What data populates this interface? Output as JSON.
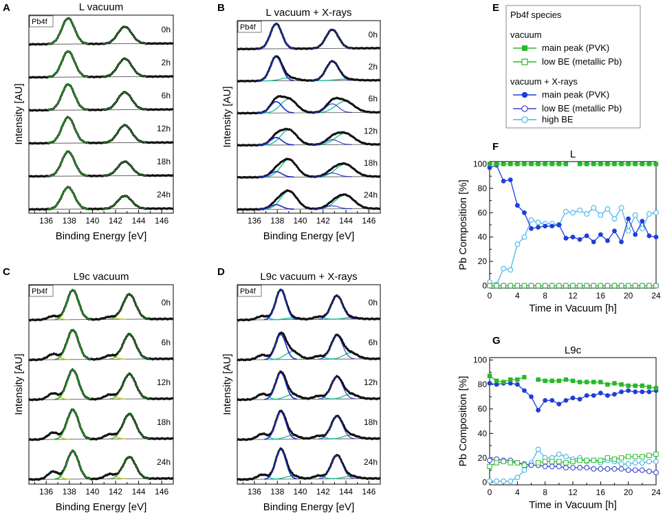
{
  "colors": {
    "data": "#111111",
    "fit_green": "#22a01f",
    "fit_blue": "#1c2fc6",
    "fit_teal": "#1ec09a",
    "fit_yellow": "#c7c21d",
    "vac_main": "#27b82a",
    "vac_lowbe": "#27b82a",
    "x_main": "#1f3dd8",
    "x_lowbe": "#3a44d0",
    "x_highbe": "#45b6e8"
  },
  "chart_data": [
    {
      "panel": "A",
      "type": "line",
      "title": "L vacuum",
      "xlabel": "Binding Energy [eV]",
      "ylabel": "Intensity [AU]",
      "xlim": [
        134.5,
        147
      ],
      "xticks": [
        "136",
        "138",
        "140",
        "142",
        "144",
        "146"
      ],
      "species_tag": "Pb4f",
      "traces": [
        "0h",
        "2h",
        "6h",
        "12h",
        "18h",
        "24h"
      ],
      "peaks": [
        {
          "center": 137.9,
          "width": 0.55
        },
        {
          "center": 142.8,
          "width": 0.6
        }
      ]
    },
    {
      "panel": "B",
      "type": "line",
      "title": "L vacuum + X-rays",
      "xlabel": "Binding Energy [eV]",
      "ylabel": "Intensity [AU]",
      "xlim": [
        134.5,
        147
      ],
      "xticks": [
        "136",
        "138",
        "140",
        "142",
        "144",
        "146"
      ],
      "species_tag": "Pb4f",
      "traces": [
        "0h",
        "2h",
        "6h",
        "12h",
        "18h",
        "24h"
      ],
      "peaks": [
        {
          "center": 137.9,
          "width": 0.5
        },
        {
          "center": 142.8,
          "width": 0.55
        },
        {
          "center": 139.0,
          "width": 0.7
        },
        {
          "center": 143.9,
          "width": 0.8
        }
      ]
    },
    {
      "panel": "C",
      "type": "line",
      "title": "L9c vacuum",
      "xlabel": "Binding Energy [eV]",
      "ylabel": "Intensity [AU]",
      "xlim": [
        134.5,
        147
      ],
      "xticks": [
        "136",
        "138",
        "140",
        "142",
        "144",
        "146"
      ],
      "species_tag": "Pb4f",
      "traces": [
        "0h",
        "6h",
        "12h",
        "18h",
        "24h"
      ],
      "peaks": [
        {
          "center": 138.3,
          "width": 0.5
        },
        {
          "center": 143.2,
          "width": 0.55
        },
        {
          "center": 136.6,
          "width": 0.45
        },
        {
          "center": 141.5,
          "width": 0.45
        }
      ]
    },
    {
      "panel": "D",
      "type": "line",
      "title": "L9c vacuum + X-rays",
      "xlabel": "Binding Energy [eV]",
      "ylabel": "Intensity [AU]",
      "xlim": [
        134.5,
        147
      ],
      "xticks": [
        "136",
        "138",
        "140",
        "142",
        "144",
        "146"
      ],
      "species_tag": "Pb4f",
      "traces": [
        "0h",
        "6h",
        "12h",
        "18h",
        "24h"
      ],
      "peaks": [
        {
          "center": 138.3,
          "width": 0.45
        },
        {
          "center": 143.2,
          "width": 0.5
        },
        {
          "center": 136.7,
          "width": 0.45
        },
        {
          "center": 139.3,
          "width": 0.6
        },
        {
          "center": 141.6,
          "width": 0.45
        },
        {
          "center": 144.4,
          "width": 0.6
        }
      ]
    },
    {
      "panel": "F",
      "type": "line",
      "title": "L",
      "xlabel": "Time in Vacuum [h]",
      "ylabel": "Pb Composition [%]",
      "xlim": [
        0,
        24
      ],
      "ylim": [
        -2,
        102
      ],
      "xticks": [
        0,
        4,
        8,
        12,
        16,
        20,
        24
      ],
      "yticks": [
        0,
        20,
        40,
        60,
        80,
        100
      ],
      "series": [
        {
          "name": "vacuum main peak (PVK)",
          "style": "vac_main",
          "x": [
            0,
            1,
            2,
            3,
            4,
            5,
            6,
            7,
            8,
            9,
            10,
            11,
            13,
            14,
            15,
            16,
            17,
            18,
            19,
            20,
            21,
            22,
            23,
            24
          ],
          "values": [
            100,
            100,
            100,
            100,
            100,
            100,
            100,
            100,
            100,
            100,
            100,
            100,
            100,
            100,
            100,
            100,
            100,
            100,
            100,
            100,
            100,
            100,
            100,
            100
          ]
        },
        {
          "name": "vacuum low BE (metallic Pb)",
          "style": "vac_lowbe",
          "x": [
            0,
            1,
            2,
            3,
            4,
            5,
            6,
            7,
            8,
            9,
            10,
            11,
            12,
            13,
            14,
            15,
            16,
            17,
            18,
            19,
            20,
            21,
            22,
            23,
            24
          ],
          "values": [
            0,
            0,
            0,
            0,
            0,
            0,
            0,
            0,
            0,
            0,
            0,
            0,
            0,
            0,
            0,
            0,
            0,
            0,
            0,
            0,
            0,
            0,
            0,
            0,
            0
          ]
        },
        {
          "name": "vacuum + X-rays main peak (PVK)",
          "style": "x_main",
          "x": [
            0,
            1,
            2,
            3,
            4,
            5,
            6,
            7,
            8,
            9,
            10,
            11,
            12,
            13,
            14,
            15,
            16,
            17,
            18,
            19,
            20,
            21,
            22,
            23,
            24
          ],
          "values": [
            97,
            99,
            86,
            87,
            66,
            60,
            47,
            48,
            49,
            49,
            50,
            39,
            40,
            38,
            41,
            36,
            42,
            37,
            45,
            36,
            55,
            42,
            53,
            41,
            40
          ]
        },
        {
          "name": "vacuum + X-rays low BE (metallic Pb)",
          "style": "x_lowbe",
          "x": [
            0,
            1,
            2,
            3,
            4,
            5,
            6,
            7,
            8,
            9,
            10,
            11,
            12,
            13,
            14,
            15,
            16,
            17,
            18,
            19,
            20,
            21,
            22,
            23,
            24
          ],
          "values": [
            0,
            0,
            0,
            0,
            0,
            0,
            0,
            0,
            0,
            0,
            0,
            0,
            0,
            0,
            0,
            0,
            0,
            0,
            0,
            0,
            0,
            0,
            0,
            0,
            0
          ]
        },
        {
          "name": "vacuum + X-rays high BE",
          "style": "x_highbe",
          "x": [
            0,
            1,
            2,
            3,
            4,
            5,
            6,
            7,
            8,
            9,
            10,
            11,
            12,
            13,
            14,
            15,
            16,
            17,
            18,
            19,
            20,
            21,
            22,
            23,
            24
          ],
          "values": [
            3,
            1,
            14,
            13,
            34,
            40,
            54,
            52,
            51,
            51,
            50,
            61,
            60,
            62,
            59,
            64,
            58,
            63,
            55,
            64,
            45,
            58,
            47,
            59,
            60
          ]
        }
      ]
    },
    {
      "panel": "G",
      "type": "line",
      "title": "L9c",
      "xlabel": "Time in Vacuum [h]",
      "ylabel": "Pb Composition [%]",
      "xlim": [
        0,
        24
      ],
      "ylim": [
        -2,
        102
      ],
      "xticks": [
        0,
        4,
        8,
        12,
        16,
        20,
        24
      ],
      "yticks": [
        0,
        20,
        40,
        60,
        80,
        100
      ],
      "series": [
        {
          "name": "vacuum main peak (PVK)",
          "style": "vac_main",
          "x": [
            0,
            1,
            2,
            3,
            4,
            5,
            7,
            8,
            9,
            10,
            11,
            12,
            13,
            14,
            15,
            16,
            17,
            18,
            19,
            20,
            21,
            22,
            23,
            24
          ],
          "values": [
            87,
            83,
            82,
            84,
            84,
            86,
            84,
            83,
            83,
            83,
            84,
            83,
            82,
            82,
            82,
            82,
            80,
            81,
            80,
            79,
            79,
            79,
            78,
            77
          ]
        },
        {
          "name": "vacuum low BE (metallic Pb)",
          "style": "vac_lowbe",
          "x": [
            0,
            1,
            2,
            3,
            4,
            5,
            7,
            8,
            9,
            10,
            11,
            12,
            13,
            14,
            15,
            16,
            17,
            18,
            19,
            20,
            21,
            22,
            23,
            24
          ],
          "values": [
            13,
            16,
            17,
            16,
            16,
            14,
            16,
            17,
            17,
            17,
            16,
            17,
            18,
            18,
            18,
            18,
            20,
            19,
            20,
            21,
            21,
            21,
            22,
            23
          ]
        },
        {
          "name": "vacuum + X-rays main peak (PVK)",
          "style": "x_main",
          "x": [
            0,
            1,
            2,
            3,
            4,
            5,
            6,
            7,
            8,
            9,
            10,
            11,
            12,
            13,
            14,
            15,
            16,
            17,
            18,
            19,
            20,
            21,
            22,
            23,
            24
          ],
          "values": [
            81,
            80,
            81,
            81,
            80,
            75,
            70,
            59,
            67,
            67,
            64,
            67,
            69,
            68,
            71,
            71,
            73,
            71,
            72,
            74,
            75,
            74,
            74,
            74,
            75
          ]
        },
        {
          "name": "vacuum + X-rays low BE (metallic Pb)",
          "style": "x_lowbe",
          "x": [
            0,
            1,
            2,
            3,
            4,
            5,
            6,
            7,
            8,
            9,
            10,
            11,
            12,
            13,
            14,
            15,
            16,
            17,
            18,
            19,
            20,
            21,
            22,
            23,
            24
          ],
          "values": [
            18,
            19,
            18,
            18,
            16,
            15,
            14,
            14,
            13,
            13,
            13,
            12,
            12,
            12,
            12,
            11,
            11,
            11,
            11,
            11,
            10,
            10,
            10,
            9,
            8
          ]
        },
        {
          "name": "vacuum + X-rays high BE",
          "style": "x_highbe",
          "x": [
            0,
            1,
            2,
            3,
            4,
            5,
            6,
            7,
            8,
            9,
            10,
            11,
            12,
            13,
            14,
            15,
            16,
            17,
            18,
            19,
            20,
            21,
            22,
            23,
            24
          ],
          "values": [
            1,
            1,
            1,
            1,
            4,
            10,
            16,
            27,
            20,
            20,
            23,
            21,
            19,
            20,
            17,
            18,
            16,
            18,
            17,
            15,
            15,
            16,
            16,
            17,
            17
          ]
        }
      ]
    }
  ],
  "legend": {
    "title": "Pb4f species",
    "group1": "vacuum",
    "group2": "vacuum + X-rays",
    "items": [
      {
        "label": "main peak (PVK)",
        "style": "vac_main"
      },
      {
        "label": "low BE (metallic Pb)",
        "style": "vac_lowbe"
      },
      {
        "label": "main peak (PVK)",
        "style": "x_main"
      },
      {
        "label": "low BE (metallic Pb)",
        "style": "x_lowbe"
      },
      {
        "label": "high BE",
        "style": "x_highbe"
      }
    ]
  },
  "panel_letters": [
    "A",
    "B",
    "C",
    "D",
    "E",
    "F",
    "G"
  ]
}
